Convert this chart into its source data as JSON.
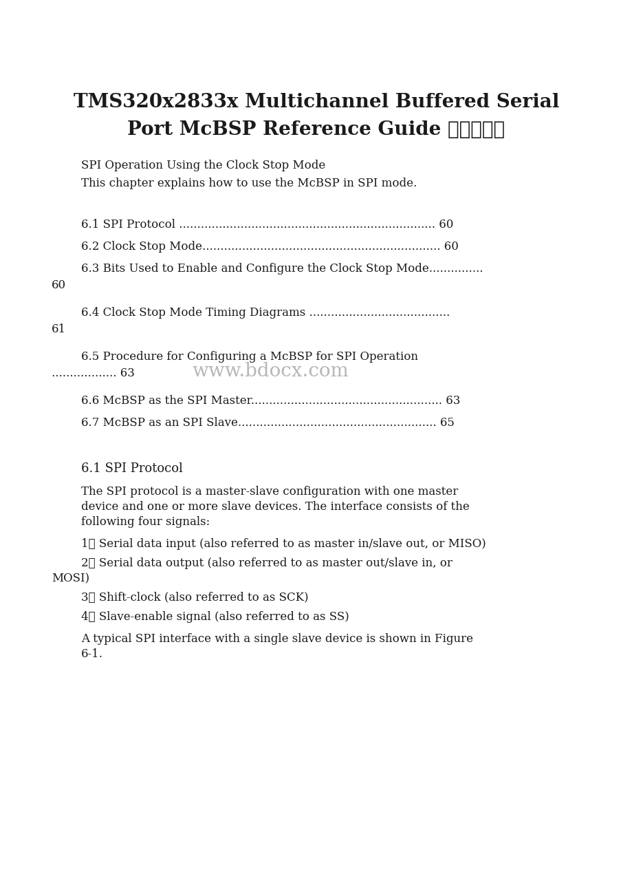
{
  "bg_color": "#ffffff",
  "text_color": "#1a1a1a",
  "title_line1": "TMS320x2833x Multichannel Buffered Serial",
  "title_line2": "Port McBSP Reference Guide 第六章英文",
  "subtitle1": "SPI Operation Using the Clock Stop Mode",
  "subtitle2": "This chapter explains how to use the McBSP in SPI mode.",
  "toc_entries": [
    {
      "line1": "6.1 SPI Protocol .......................................................................",
      "page": " 60",
      "wrap": false
    },
    {
      "line1": "6.2 Clock Stop Mode..................................................................",
      "page": " 60",
      "wrap": false
    },
    {
      "line1": "6.3 Bits Used to Enable and Configure the Clock Stop Mode...............",
      "page": "60",
      "wrap": true
    },
    {
      "line1": "6.4 Clock Stop Mode Timing Diagrams .......................................",
      "page": "61",
      "wrap": true
    },
    {
      "line1": "6.5 Procedure for Configuring a McBSP for SPI Operation",
      "page": "63",
      "wrap": true,
      "cont": ".................. 63"
    },
    {
      "line1": "6.6 McBSP as the SPI Master.....................................................",
      "page": " 63",
      "wrap": false
    },
    {
      "line1": "6.7 McBSP as an SPI Slave.......................................................",
      "page": " 65",
      "wrap": false
    }
  ],
  "section_title": "6.1 SPI Protocol",
  "body_para1_lines": [
    "The SPI protocol is a master-slave configuration with one master",
    "device and one or more slave devices. The interface consists of the",
    "following four signals:"
  ],
  "list_items": [
    {
      "num": "1、",
      "text": "Serial data input (also referred to as master in/slave out, or MISO)"
    },
    {
      "num": "2、",
      "text": "Serial data output (also referred to as master out/slave in, or\nMOSI)"
    },
    {
      "num": "3、",
      "text": "Shift-clock (also referred to as SCK)"
    },
    {
      "num": "4、",
      "text": "Slave-enable signal (also referred to as SS)"
    }
  ],
  "body_para2_lines": [
    "A typical SPI interface with a single slave device is shown in Figure",
    "6-1."
  ],
  "watermark": "www.bdocx.com",
  "watermark_color": "#b0b0b0",
  "title_fontsize": 20,
  "body_fontsize": 12,
  "toc_fontsize": 12,
  "section_fontsize": 13,
  "subtitle_fontsize": 12,
  "watermark_fontsize": 20
}
